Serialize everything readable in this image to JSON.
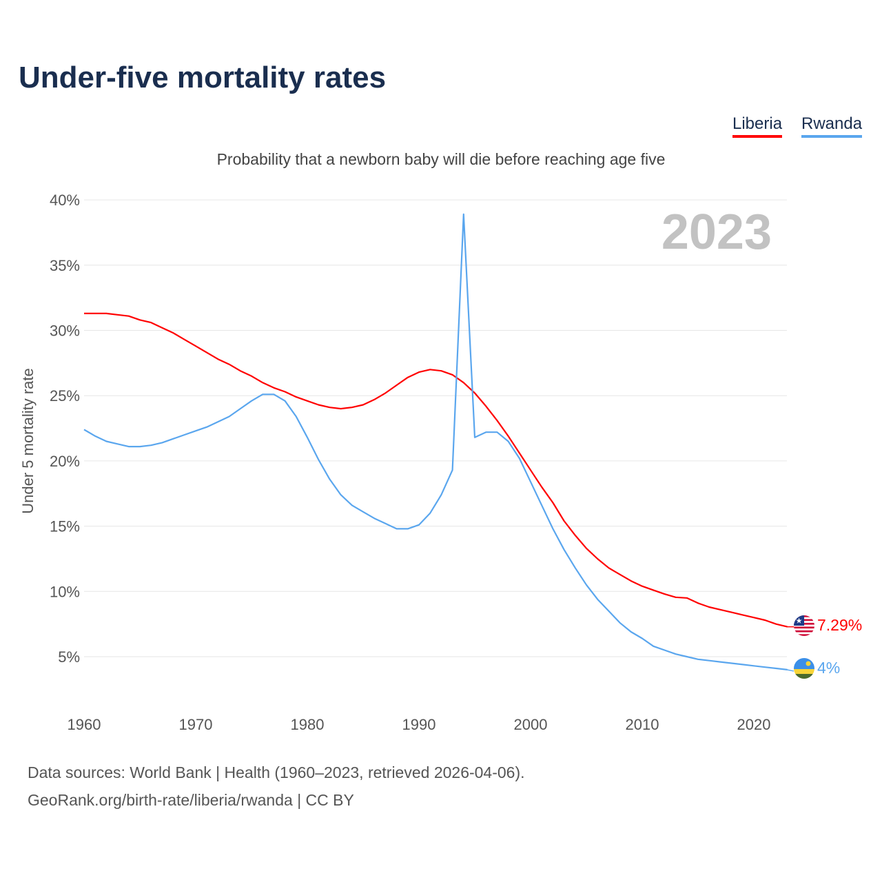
{
  "title": "Under-five mortality rates",
  "subtitle": "Probability that a newborn baby will die before reaching age five",
  "year_label": "2023",
  "sources": [
    "Data sources: World Bank | Health (1960–2023, retrieved 2026-04-06).",
    "GeoRank.org/birth-rate/liberia/rwanda | CC BY"
  ],
  "chart_data": {
    "type": "line",
    "title": "Under-five mortality rates",
    "xlabel": "",
    "ylabel": "Under 5 mortality rate",
    "xlim": [
      1960,
      2023
    ],
    "ylim": [
      0,
      40
    ],
    "xticks": [
      "1960",
      "1970",
      "1980",
      "1990",
      "2000",
      "2010",
      "2020"
    ],
    "yticks": [
      "5%",
      "10%",
      "15%",
      "20%",
      "25%",
      "30%",
      "35%",
      "40%"
    ],
    "grid": true,
    "legend": "top-right",
    "x_start": 1960,
    "series": [
      {
        "name": "Liberia",
        "color": "#ff0000",
        "end_label": "7.29%",
        "flag": "liberia-flag",
        "values": [
          31.3,
          31.3,
          31.3,
          31.2,
          31.1,
          30.8,
          30.6,
          30.2,
          29.8,
          29.3,
          28.8,
          28.3,
          27.8,
          27.4,
          26.9,
          26.5,
          26.0,
          25.6,
          25.3,
          24.9,
          24.6,
          24.3,
          24.1,
          24.0,
          24.1,
          24.3,
          24.7,
          25.2,
          25.8,
          26.4,
          26.8,
          27.0,
          26.9,
          26.6,
          26.0,
          25.2,
          24.2,
          23.1,
          21.9,
          20.6,
          19.3,
          18.0,
          16.8,
          15.4,
          14.3,
          13.3,
          12.5,
          11.8,
          11.3,
          10.8,
          10.4,
          10.1,
          9.8,
          9.55,
          9.5,
          9.1,
          8.8,
          8.6,
          8.4,
          8.2,
          8.0,
          7.8,
          7.5,
          7.29
        ]
      },
      {
        "name": "Rwanda",
        "color": "#5aa6ee",
        "end_label": "4%",
        "flag": "rwanda-flag",
        "values": [
          22.4,
          21.9,
          21.5,
          21.3,
          21.1,
          21.1,
          21.2,
          21.4,
          21.7,
          22.0,
          22.3,
          22.6,
          23.0,
          23.4,
          24.0,
          24.6,
          25.1,
          25.1,
          24.6,
          23.4,
          21.8,
          20.1,
          18.6,
          17.4,
          16.6,
          16.1,
          15.6,
          15.2,
          14.8,
          14.8,
          15.1,
          16.0,
          17.4,
          19.3,
          38.9,
          21.8,
          22.2,
          22.2,
          21.5,
          20.2,
          18.4,
          16.6,
          14.8,
          13.2,
          11.8,
          10.5,
          9.4,
          8.5,
          7.6,
          6.9,
          6.4,
          5.8,
          5.5,
          5.2,
          5.0,
          4.8,
          4.7,
          4.6,
          4.5,
          4.4,
          4.3,
          4.2,
          4.1,
          4.0
        ]
      }
    ]
  }
}
